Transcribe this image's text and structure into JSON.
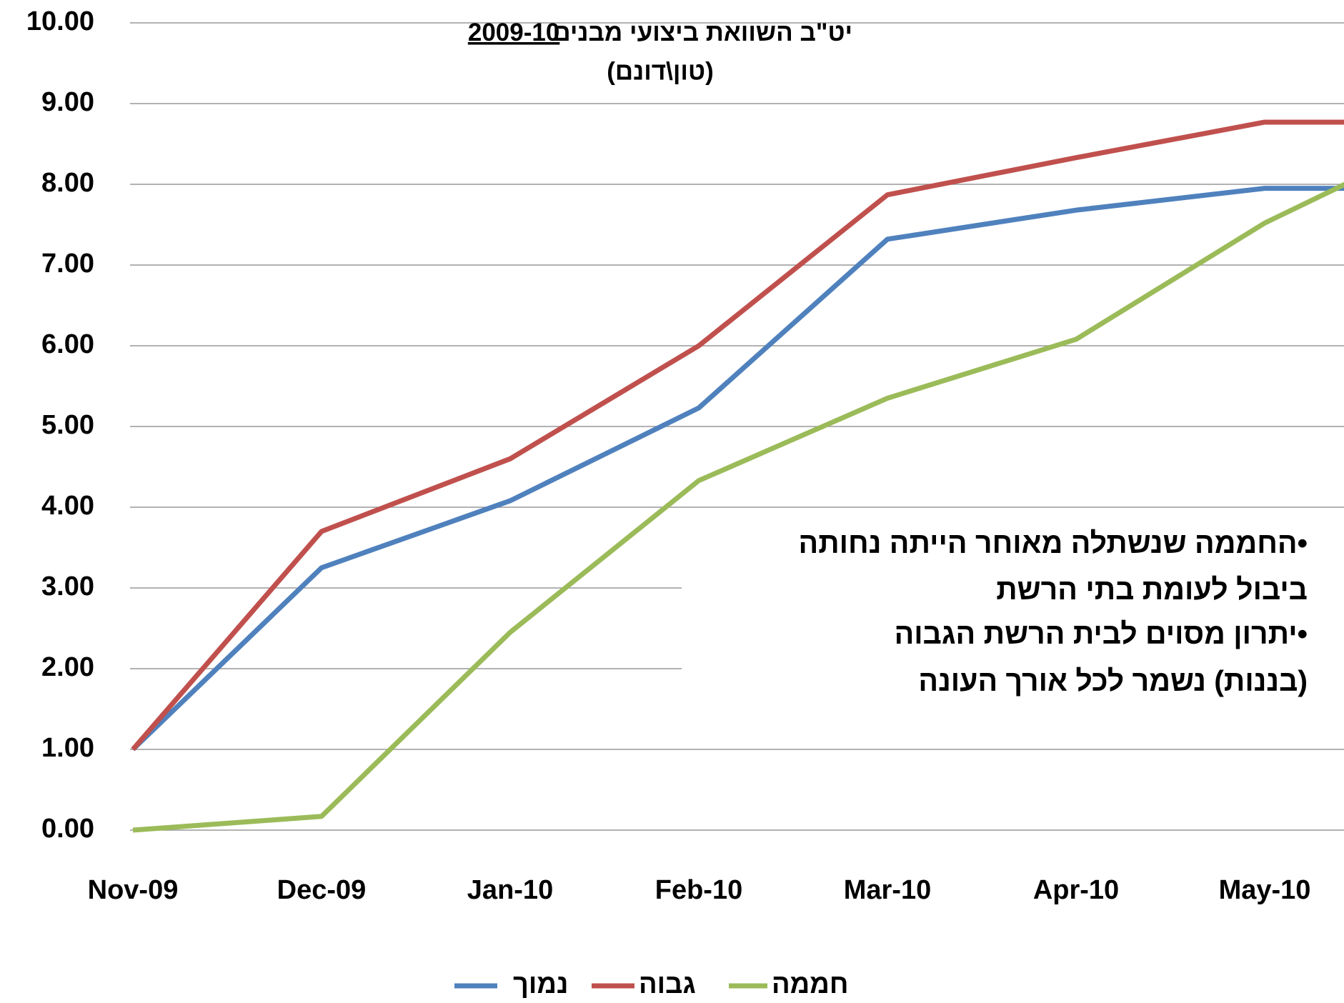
{
  "chart_data": {
    "type": "line",
    "title": "יט\"ב השוואת ביצועי מבנים",
    "title_year": "2009-10",
    "subtitle": "(טון\\דונם)",
    "categories": [
      "Nov-09",
      "Dec-09",
      "Jan-10",
      "Feb-10",
      "Mar-10",
      "Apr-10",
      "May-10",
      null
    ],
    "series": [
      {
        "name": "נמוך",
        "color": "#4f81bd",
        "values": [
          1.0,
          3.25,
          4.08,
          5.23,
          7.32,
          7.68,
          7.95,
          7.95
        ]
      },
      {
        "name": "גבוה",
        "color": "#c0504d",
        "values": [
          1.0,
          3.7,
          4.6,
          6.0,
          7.87,
          8.33,
          8.77,
          8.77
        ]
      },
      {
        "name": "חממה",
        "color": "#9bbb59",
        "values": [
          0.0,
          0.17,
          2.45,
          4.33,
          5.35,
          6.08,
          7.52,
          8.65
        ]
      }
    ],
    "ylim": [
      0,
      10
    ],
    "yticks": [
      {
        "value": 0,
        "label": "0.00"
      },
      {
        "value": 1,
        "label": "1.00"
      },
      {
        "value": 2,
        "label": "2.00"
      },
      {
        "value": 3,
        "label": "3.00"
      },
      {
        "value": 4,
        "label": "4.00"
      },
      {
        "value": 5,
        "label": "5.00"
      },
      {
        "value": 6,
        "label": "6.00"
      },
      {
        "value": 7,
        "label": "7.00"
      },
      {
        "value": 8,
        "label": "8.00"
      },
      {
        "value": 9,
        "label": "9.00"
      },
      {
        "value": 10,
        "label": "10.00"
      }
    ],
    "grid": true,
    "legend": "bottom",
    "annotation": [
      "•החממה שנשתלה מאוחר הייתה נחותה",
      "ביבול לעומת בתי הרשת",
      "•יתרון מסוים לבית הרשת הגבוה",
      "(בננות) נשמר לכל אורך העונה"
    ]
  }
}
